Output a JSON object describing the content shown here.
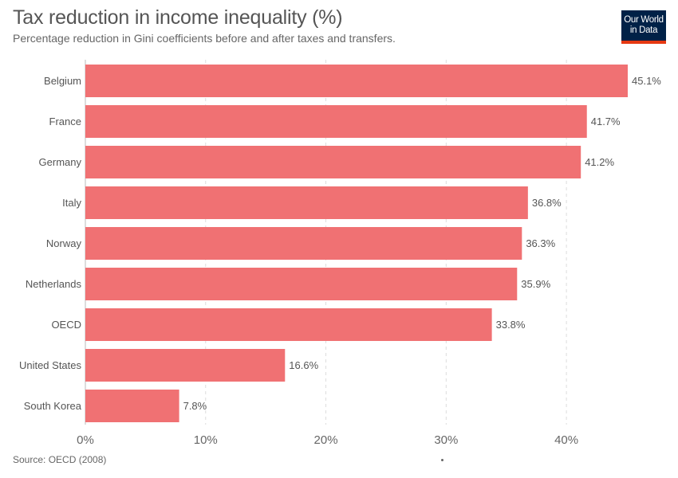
{
  "header": {
    "title": "Tax reduction in income inequality (%)",
    "subtitle": "Percentage reduction in Gini coefficients before and after taxes and transfers."
  },
  "logo": {
    "line1": "Our World",
    "line2": "in Data"
  },
  "footer": {
    "source": "Source: OECD (2008)"
  },
  "colors": {
    "bar": "#f07173",
    "grid": "#dddddd",
    "axis": "#bbbbbb",
    "text": "#555555"
  },
  "chart_data": {
    "type": "bar",
    "orientation": "horizontal",
    "categories": [
      "Belgium",
      "France",
      "Germany",
      "Italy",
      "Norway",
      "Netherlands",
      "OECD",
      "United States",
      "South Korea"
    ],
    "values": [
      45.1,
      41.7,
      41.2,
      36.8,
      36.3,
      35.9,
      33.8,
      16.6,
      7.8
    ],
    "value_labels": [
      "45.1%",
      "41.7%",
      "41.2%",
      "36.8%",
      "36.3%",
      "35.9%",
      "33.8%",
      "16.6%",
      "7.8%"
    ],
    "xticks": [
      0,
      10,
      20,
      30,
      40
    ],
    "xtick_labels": [
      "0%",
      "10%",
      "20%",
      "30%",
      "40%"
    ],
    "xlim": [
      0,
      45.1
    ],
    "grid": true
  }
}
